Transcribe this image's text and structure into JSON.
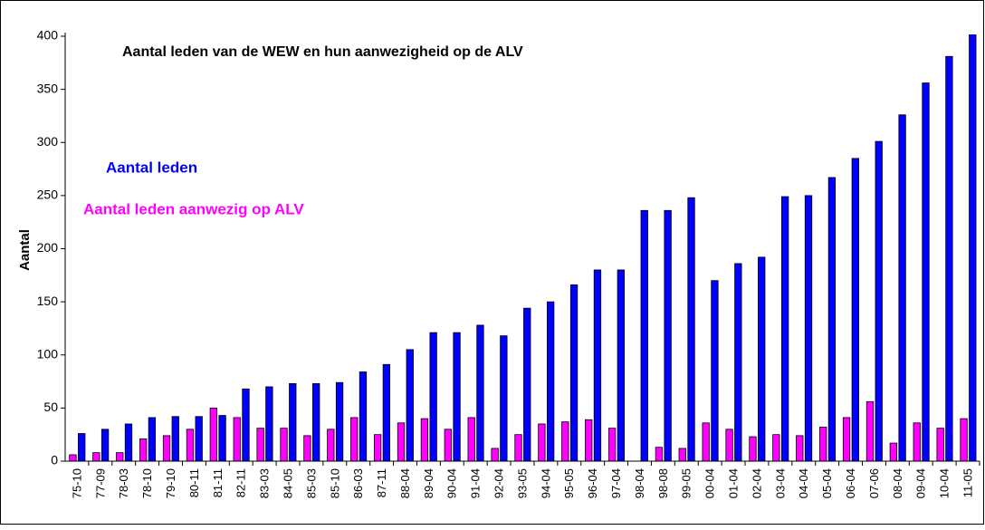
{
  "chart_data": {
    "type": "bar",
    "title": "Aantal leden van de WEW en hun aanwezigheid op de ALV",
    "y_label": "Aantal",
    "categories": [
      "75-10",
      "77-09",
      "78-03",
      "78-10",
      "79-10",
      "80-11",
      "81-11",
      "82-11",
      "83-03",
      "84-05",
      "85-03",
      "85-10",
      "86-03",
      "87-11",
      "88-04",
      "89-04",
      "90-04",
      "91-04",
      "92-04",
      "93-05",
      "94-04",
      "95-05",
      "96-04",
      "97-04",
      "98-04",
      "98-08",
      "99-05",
      "00-04",
      "01-04",
      "02-04",
      "03-04",
      "04-04",
      "05-04",
      "06-04",
      "07-06",
      "08-04",
      "09-04",
      "10-04",
      "11-05"
    ],
    "series": [
      {
        "name": "Aantal leden aanwezig op ALV",
        "color": "#ff00ff",
        "values": [
          6,
          8,
          8,
          21,
          24,
          30,
          50,
          41,
          31,
          31,
          24,
          30,
          41,
          25,
          36,
          40,
          30,
          41,
          12,
          25,
          35,
          37,
          39,
          31,
          null,
          13,
          12,
          36,
          30,
          23,
          25,
          24,
          32,
          41,
          56,
          17,
          36,
          31,
          40
        ]
      },
      {
        "name": "Aantal leden",
        "color": "#0000ff",
        "values": [
          26,
          30,
          35,
          41,
          42,
          42,
          43,
          68,
          70,
          73,
          73,
          74,
          84,
          91,
          105,
          121,
          121,
          128,
          118,
          144,
          150,
          166,
          180,
          180,
          236,
          236,
          248,
          170,
          186,
          192,
          249,
          250,
          267,
          285,
          301,
          326,
          356,
          381,
          402
        ]
      }
    ],
    "ylim": [
      0,
      400
    ],
    "yticks": [
      0,
      50,
      100,
      150,
      200,
      250,
      300,
      350,
      400
    ],
    "grid": false
  }
}
